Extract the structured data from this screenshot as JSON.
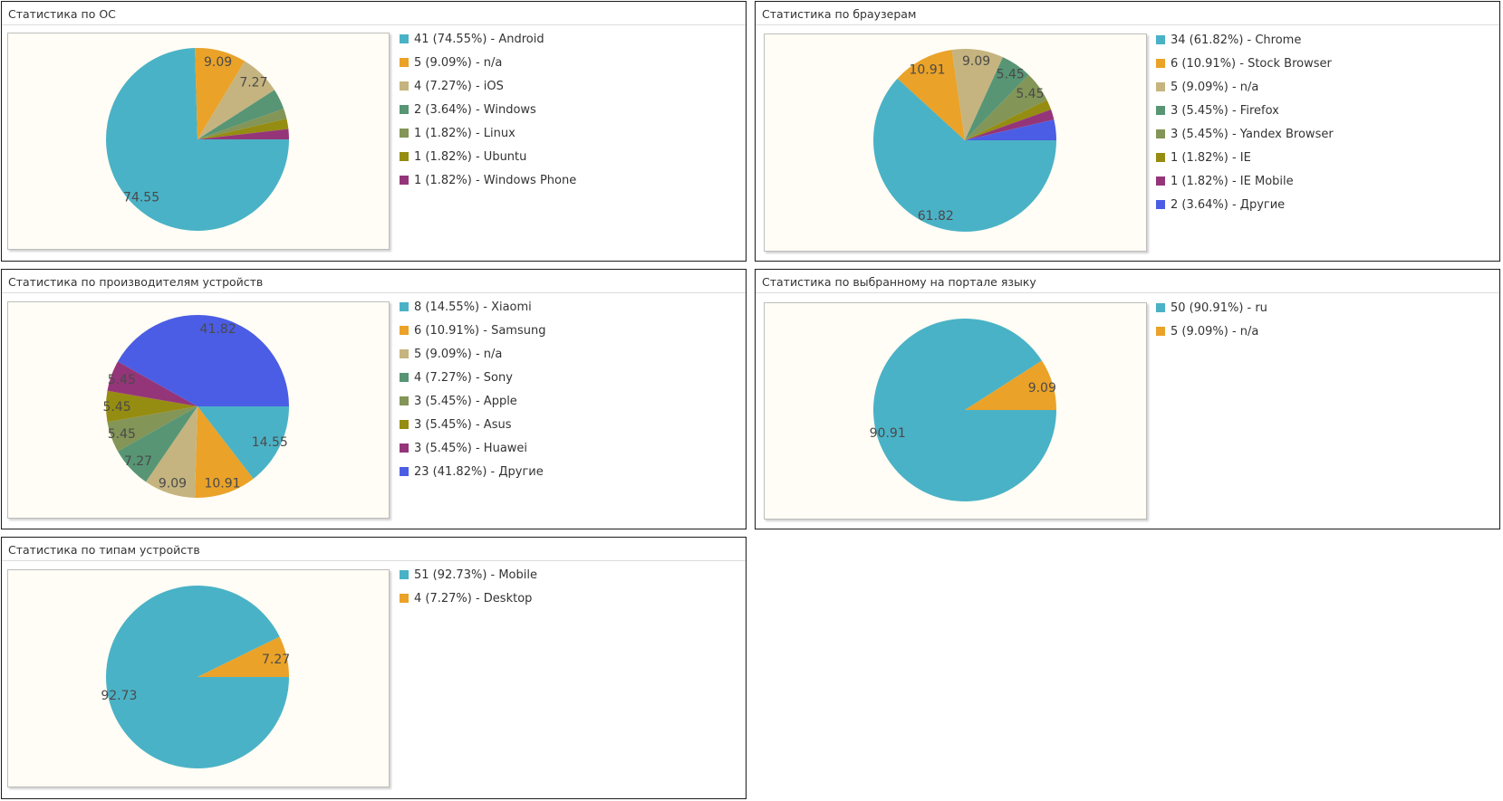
{
  "chart_data": [
    {
      "type": "pie",
      "title": "Статистика по ОС",
      "series": [
        {
          "values": [
            41,
            5,
            4,
            2,
            1,
            1,
            1
          ]
        }
      ],
      "legend": [
        "41 (74.55%) - Android",
        "5 (9.09%) - n/a",
        "4 (7.27%) - iOS",
        "2 (3.64%) - Windows",
        "1 (1.82%) - Linux",
        "1 (1.82%) - Ubuntu",
        "1 (1.82%) - Windows Phone"
      ],
      "slice_labels": [
        "74.55",
        "9.09",
        "7.27",
        "",
        "",
        "",
        ""
      ],
      "colors": [
        "#4ab2c6",
        "#eaa228",
        "#c5b47f",
        "#579575",
        "#839557",
        "#958c12",
        "#953579"
      ],
      "legend_placement": "right"
    },
    {
      "type": "pie",
      "title": "Статистика по браузерам",
      "series": [
        {
          "values": [
            34,
            6,
            5,
            3,
            3,
            1,
            1,
            2
          ]
        }
      ],
      "legend": [
        "34 (61.82%) - Chrome",
        "6 (10.91%) - Stock Browser",
        "5 (9.09%) - n/a",
        "3 (5.45%) - Firefox",
        "3 (5.45%) - Yandex Browser",
        "1 (1.82%) - IE",
        "1 (1.82%) - IE Mobile",
        "2 (3.64%) - Другие"
      ],
      "slice_labels": [
        "61.82",
        "10.91",
        "9.09",
        "5.45",
        "5.45",
        "",
        "",
        ""
      ],
      "colors": [
        "#4ab2c6",
        "#eaa228",
        "#c5b47f",
        "#579575",
        "#839557",
        "#958c12",
        "#953579",
        "#4b5de4"
      ],
      "legend_placement": "right"
    },
    {
      "type": "pie",
      "title": "Статистика по производителям устройств",
      "series": [
        {
          "values": [
            8,
            6,
            5,
            4,
            3,
            3,
            3,
            23
          ]
        }
      ],
      "legend": [
        "8 (14.55%) - Xiaomi",
        "6 (10.91%) - Samsung",
        "5 (9.09%) - n/a",
        "4 (7.27%) - Sony",
        "3 (5.45%) - Apple",
        "3 (5.45%) - Asus",
        "3 (5.45%) - Huawei",
        "23 (41.82%) - Другие"
      ],
      "slice_labels": [
        "14.55",
        "10.91",
        "9.09",
        "7.27",
        "5.45",
        "5.45",
        "5.45",
        "41.82"
      ],
      "colors": [
        "#4ab2c6",
        "#eaa228",
        "#c5b47f",
        "#579575",
        "#839557",
        "#958c12",
        "#953579",
        "#4b5de4"
      ],
      "legend_placement": "right"
    },
    {
      "type": "pie",
      "title": "Статистика по выбранному на портале языку",
      "series": [
        {
          "values": [
            50,
            5
          ]
        }
      ],
      "legend": [
        "50 (90.91%) - ru",
        "5 (9.09%) - n/a"
      ],
      "slice_labels": [
        "90.91",
        "9.09"
      ],
      "colors": [
        "#4ab2c6",
        "#eaa228"
      ],
      "legend_placement": "right"
    },
    {
      "type": "pie",
      "title": "Статистика по типам устройств",
      "series": [
        {
          "values": [
            51,
            4
          ]
        }
      ],
      "legend": [
        "51 (92.73%) - Mobile",
        "4 (7.27%) - Desktop"
      ],
      "slice_labels": [
        "92.73",
        "7.27"
      ],
      "colors": [
        "#4ab2c6",
        "#eaa228"
      ],
      "legend_placement": "right"
    }
  ]
}
